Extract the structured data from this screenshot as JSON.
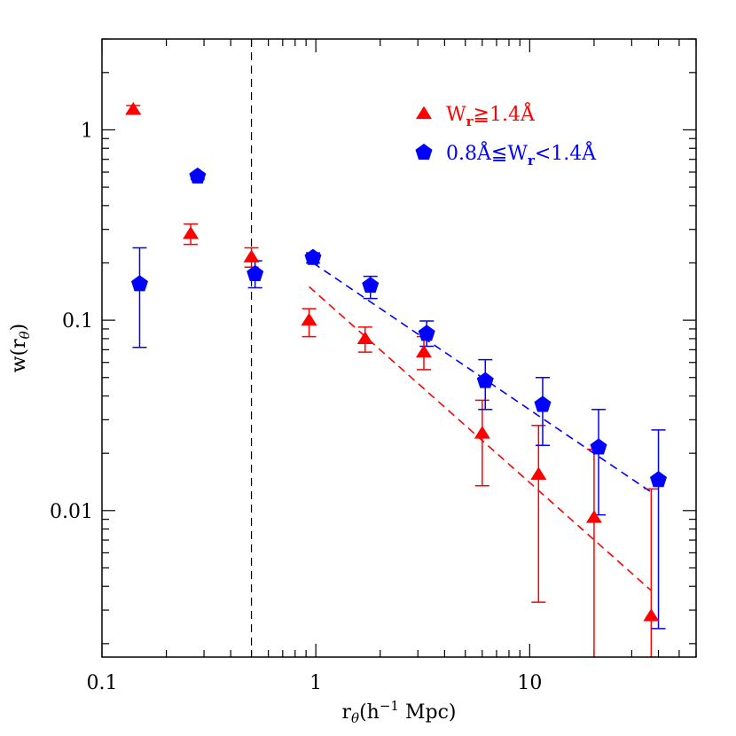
{
  "chart_data": {
    "type": "scatter",
    "title": "",
    "xlabel": "r_θ(h⁻¹ Mpc)",
    "ylabel": "w(r_θ)",
    "xscale": "log",
    "yscale": "log",
    "xlim": [
      0.1,
      60
    ],
    "ylim": [
      0.0017,
      3.0
    ],
    "x_ticks": [
      {
        "value": 0.1,
        "label": "0.1"
      },
      {
        "value": 1,
        "label": "1"
      },
      {
        "value": 10,
        "label": "10"
      }
    ],
    "y_ticks": [
      {
        "value": 0.01,
        "label": "0.01"
      },
      {
        "value": 0.1,
        "label": "0.1"
      },
      {
        "value": 1,
        "label": "1"
      }
    ],
    "vertical_line": {
      "x": 0.5,
      "style": "dashed",
      "color": "#000000"
    },
    "legend_placement": "top-right",
    "series": [
      {
        "name": "W_r≧1.4Å",
        "marker": "triangle",
        "color": "#ff0000",
        "points": [
          {
            "x": 0.14,
            "y": 1.28,
            "lo": 1.22,
            "hi": 1.34
          },
          {
            "x": 0.26,
            "y": 0.285,
            "lo": 0.25,
            "hi": 0.32
          },
          {
            "x": 0.5,
            "y": 0.215,
            "lo": 0.19,
            "hi": 0.24
          },
          {
            "x": 0.93,
            "y": 0.1,
            "lo": 0.082,
            "hi": 0.115
          },
          {
            "x": 1.7,
            "y": 0.08,
            "lo": 0.068,
            "hi": 0.092
          },
          {
            "x": 3.2,
            "y": 0.068,
            "lo": 0.055,
            "hi": 0.082
          },
          {
            "x": 6.0,
            "y": 0.0255,
            "lo": 0.0135,
            "hi": 0.038
          },
          {
            "x": 11.0,
            "y": 0.0155,
            "lo": 0.0033,
            "hi": 0.028
          },
          {
            "x": 20.0,
            "y": 0.0092,
            "lo": 0.0017,
            "hi": 0.021
          },
          {
            "x": 37.0,
            "y": 0.0028,
            "lo": 0.0017,
            "hi": 0.013
          }
        ],
        "fit_line": {
          "x": [
            0.93,
            37.0
          ],
          "y": [
            0.15,
            0.0038
          ]
        }
      },
      {
        "name": "0.8Å≦W_r<1.4Å",
        "marker": "pentagon",
        "color": "#0000ff",
        "points": [
          {
            "x": 0.15,
            "y": 0.155,
            "lo": 0.072,
            "hi": 0.24
          },
          {
            "x": 0.28,
            "y": 0.57,
            "lo": 0.55,
            "hi": 0.59
          },
          {
            "x": 0.52,
            "y": 0.175,
            "lo": 0.148,
            "hi": 0.205
          },
          {
            "x": 0.97,
            "y": 0.213,
            "lo": 0.2,
            "hi": 0.226
          },
          {
            "x": 1.8,
            "y": 0.152,
            "lo": 0.13,
            "hi": 0.17
          },
          {
            "x": 3.3,
            "y": 0.085,
            "lo": 0.073,
            "hi": 0.099
          },
          {
            "x": 6.2,
            "y": 0.048,
            "lo": 0.034,
            "hi": 0.062
          },
          {
            "x": 11.5,
            "y": 0.036,
            "lo": 0.022,
            "hi": 0.05
          },
          {
            "x": 21.0,
            "y": 0.0215,
            "lo": 0.0095,
            "hi": 0.034
          },
          {
            "x": 40.0,
            "y": 0.0145,
            "lo": 0.0024,
            "hi": 0.0265
          }
        ],
        "fit_line": {
          "x": [
            0.97,
            37.0
          ],
          "y": [
            0.2,
            0.0125
          ]
        }
      }
    ]
  }
}
